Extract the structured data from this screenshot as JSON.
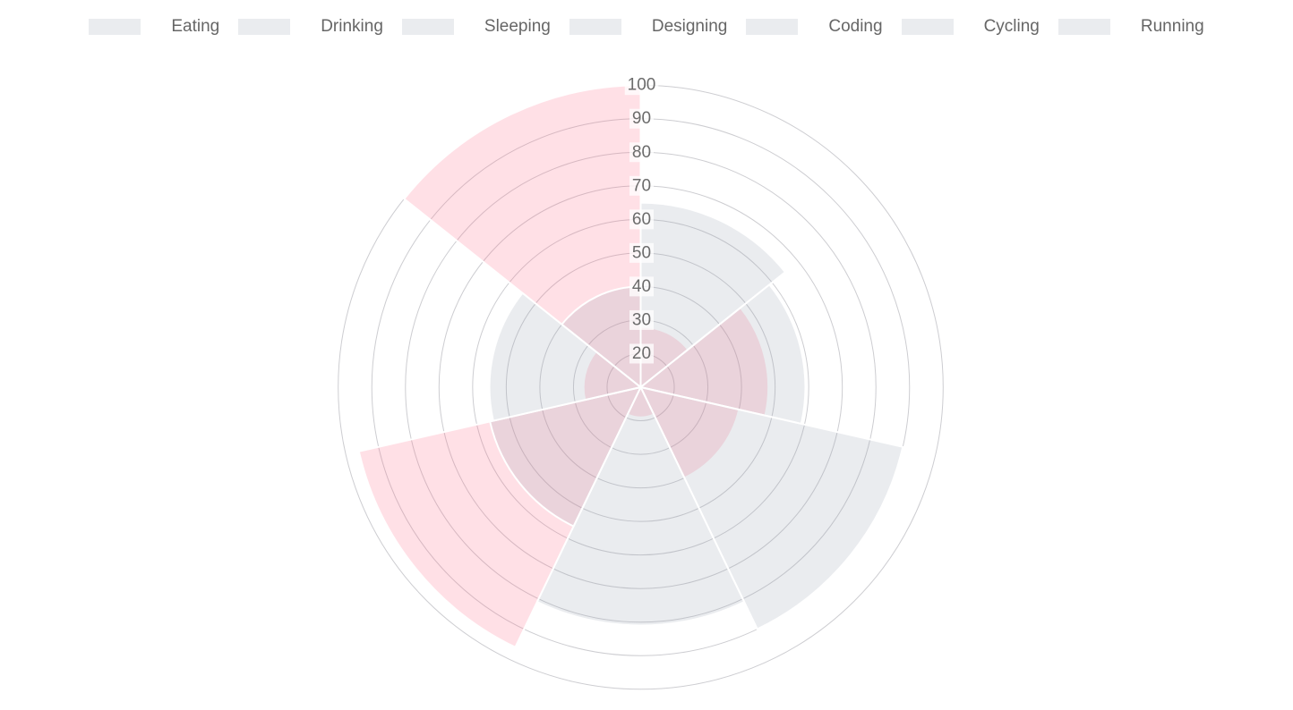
{
  "page": {
    "background": "#ffffff"
  },
  "legend": {
    "position": "top",
    "text_color": "#666666",
    "items": [
      {
        "label": "Eating"
      },
      {
        "label": "Drinking"
      },
      {
        "label": "Sleeping"
      },
      {
        "label": "Designing"
      },
      {
        "label": "Coding"
      },
      {
        "label": "Cycling"
      },
      {
        "label": "Running"
      }
    ]
  },
  "chart_data": {
    "type": "polarArea",
    "title": "",
    "categories": [
      "Eating",
      "Drinking",
      "Sleeping",
      "Designing",
      "Coding",
      "Cycling",
      "Running"
    ],
    "series": [
      {
        "name": "pink-series",
        "fill": "rgba(255,99,132,0.2)",
        "border": "#ffffff",
        "layer": "under",
        "values": [
          28,
          48,
          40,
          19,
          96,
          27,
          100
        ]
      },
      {
        "name": "gray-series",
        "fill": "rgba(148,159,177,0.2)",
        "border": "#ffffff",
        "layer": "over",
        "values": [
          65,
          59,
          90,
          81,
          56,
          55,
          40
        ]
      }
    ],
    "scale": {
      "min": 10,
      "max": 100,
      "ticks": [
        20,
        30,
        40,
        50,
        60,
        70,
        80,
        90,
        100
      ],
      "tick_color": "#6b6b6b",
      "tick_backdrop": "rgba(255,255,255,0.75)",
      "grid_color": "#cdcdd1",
      "angle_lines": false
    },
    "start_angle_deg": 0,
    "direction": "clockwise",
    "legend_position": "top",
    "grid": true
  }
}
